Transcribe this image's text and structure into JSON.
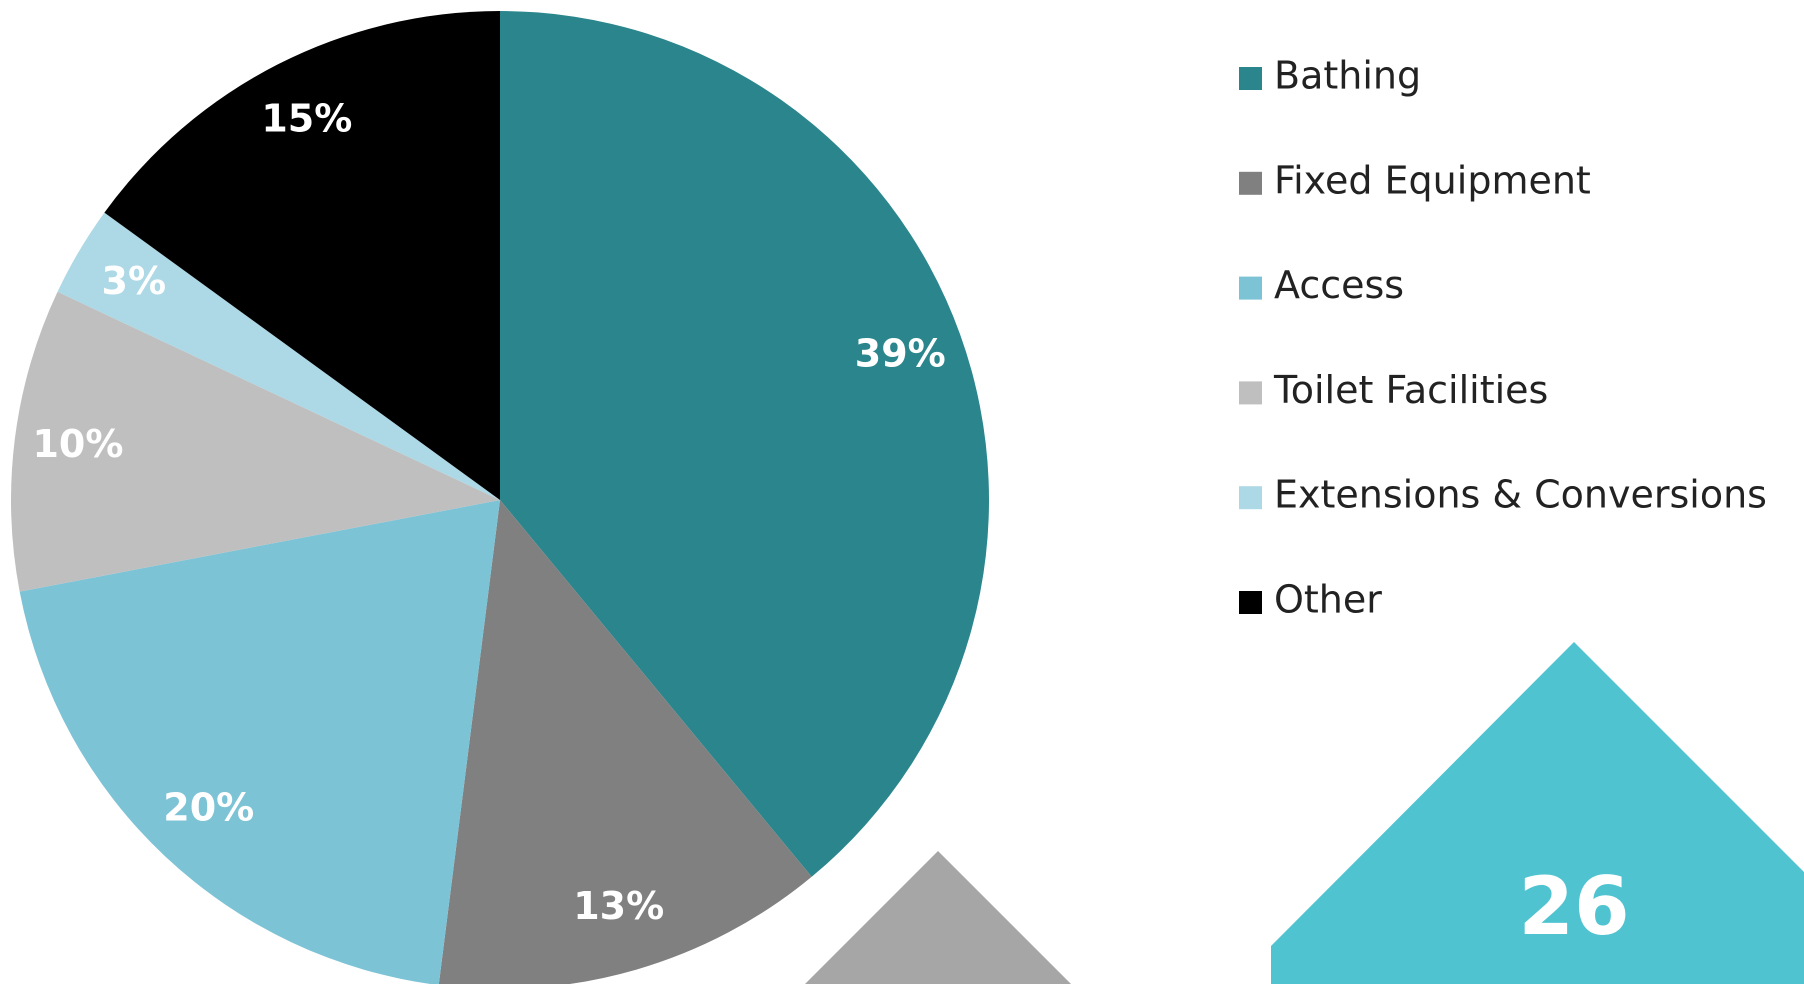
{
  "chart_data": {
    "type": "pie",
    "categories": [
      "Bathing",
      "Fixed Equipment",
      "Access",
      "Toilet Facilities",
      "Extensions & Conversions",
      "Other"
    ],
    "values": [
      39,
      13,
      20,
      10,
      3,
      15
    ],
    "value_labels": [
      "39%",
      "13%",
      "20%",
      "10%",
      "3%",
      "15%"
    ],
    "colors": [
      "#2a868c",
      "#808080",
      "#7dc3d6",
      "#bfbfbf",
      "#add8e6",
      "#000000"
    ],
    "legend": "right"
  },
  "page_number": "26"
}
